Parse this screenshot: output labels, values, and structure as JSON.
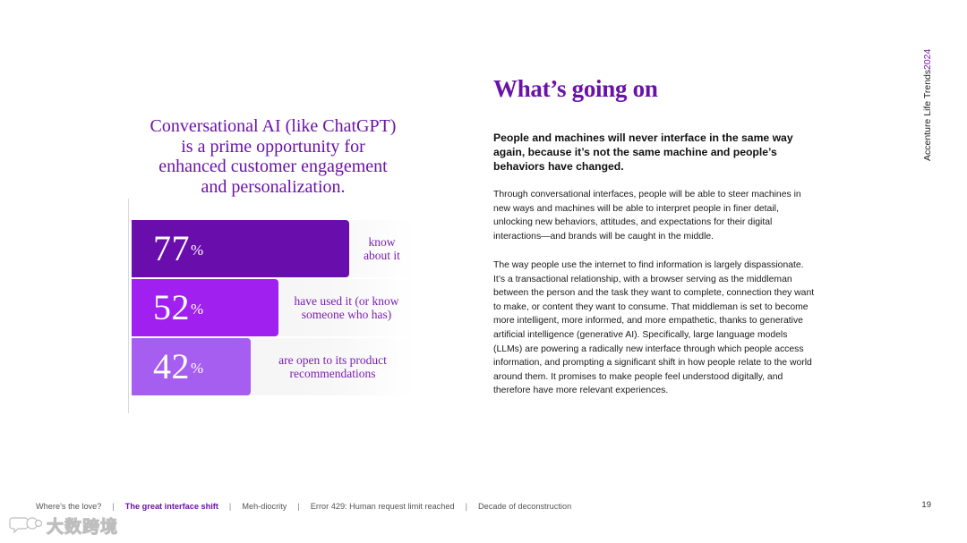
{
  "left_panel": {
    "title_lines": [
      "Conversational AI (like ChatGPT)",
      "is a prime opportunity for",
      "enhanced customer engagement",
      "and personalization."
    ]
  },
  "chart_data": {
    "type": "bar",
    "orientation": "horizontal",
    "title": "Conversational AI (like ChatGPT) is a prime opportunity for enhanced customer engagement and personalization.",
    "categories": [
      "know about it",
      "have used it (or know someone who has)",
      "are open to its product recommendations"
    ],
    "values": [
      77,
      52,
      42
    ],
    "value_suffix": "%",
    "display": [
      {
        "value": "77",
        "suffix": "%",
        "label_lines": [
          "know",
          "about it"
        ],
        "color": "#6a0dad"
      },
      {
        "value": "52",
        "suffix": "%",
        "label_lines": [
          "have used it (or know",
          "someone who has)"
        ],
        "color": "#a020f0"
      },
      {
        "value": "42",
        "suffix": "%",
        "label_lines": [
          "are open to its product",
          "recommendations"
        ],
        "color": "#a55ef0"
      }
    ],
    "xlim": [
      0,
      100
    ],
    "grid": false,
    "legend": "none"
  },
  "right_panel": {
    "heading": "What’s going on",
    "lead": "People and machines will never interface in the same way again, because it’s not the same machine and people’s behaviors have changed.",
    "paragraph_1": "Through conversational interfaces, people will be able to steer machines in new ways and machines will be able to interpret people in finer detail, unlocking new behaviors, attitudes, and expectations for their digital interactions—and brands will be caught in the middle.",
    "paragraph_2": "The way people use the internet to find information is largely dispassionate. It’s a transactional relationship, with a browser serving as the middleman between the person and the task they want to complete, connection they want to make, or content they want to consume. That middleman is set to become more intelligent, more informed, and more empathetic, thanks to generative artificial intelligence (generative AI). Specifically, large language models (LLMs) are powering a radically new interface through which people access information, and prompting a significant shift in how people relate to the world around them. It promises to make people feel understood digitally, and therefore have more relevant experiences."
  },
  "side_label": {
    "text": "Accenture Life Trends",
    "year": "2024"
  },
  "footer": {
    "nav": [
      {
        "label": "Where’s the love?",
        "active": false
      },
      {
        "label": "The great interface shift",
        "active": true
      },
      {
        "label": "Meh-diocrity",
        "active": false
      },
      {
        "label": "Error 429: Human request limit reached",
        "active": false
      },
      {
        "label": "Decade of deconstruction",
        "active": false
      }
    ],
    "separator": "|",
    "page_number": "19"
  },
  "watermark": {
    "text": "大数跨境",
    "icon": "chat-bubble-logo"
  },
  "colors": {
    "accent": "#6a12a8",
    "bar_1": "#6a0dad",
    "bar_2": "#a020f0",
    "bar_3": "#a55ef0"
  }
}
